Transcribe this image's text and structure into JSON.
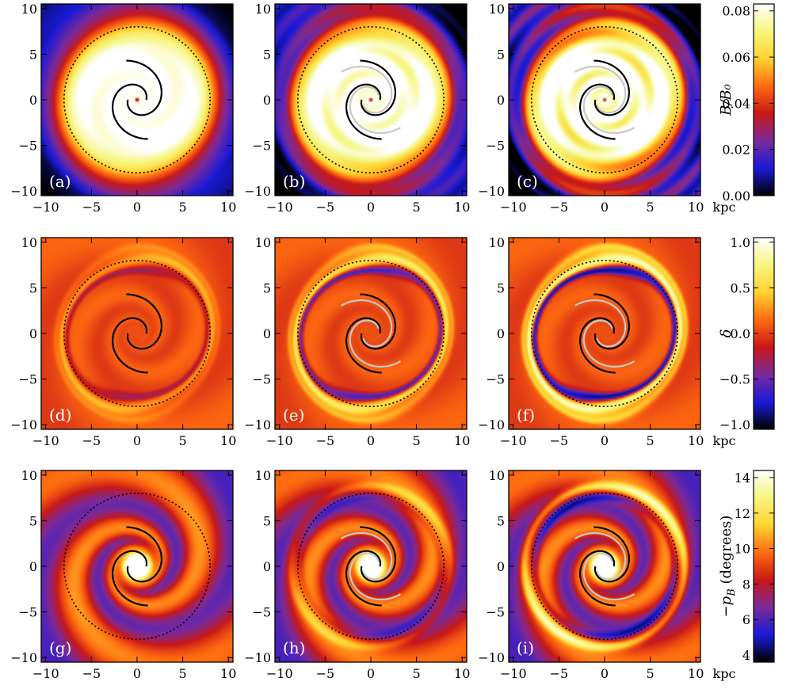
{
  "chart_data": {
    "type": "heatmap",
    "layout": "3x3 grid of face-on galactic disc maps with three colorbars",
    "x_unit": "kpc",
    "xlim": [
      -10.5,
      10.5
    ],
    "ylim": [
      -10.5,
      10.5
    ],
    "x_ticks": [
      -10,
      -5,
      0,
      5,
      10
    ],
    "y_ticks": [
      -10,
      -5,
      0,
      5,
      10
    ],
    "rows": [
      {
        "quantity": "B/B0",
        "colorbar_label": "B/B₀",
        "colorbar_range": [
          0.0,
          0.083
        ],
        "colorbar_ticks": [
          "0.00",
          "0.02",
          "0.04",
          "0.06",
          "0.08"
        ],
        "colorbar_tick_values": [
          0.0,
          0.02,
          0.04,
          0.06,
          0.08
        ],
        "panels": [
          "(a)",
          "(b)",
          "(c)"
        ]
      },
      {
        "quantity": "delta",
        "colorbar_label": "δ",
        "colorbar_range": [
          -1.05,
          1.05
        ],
        "colorbar_ticks": [
          "−1.0",
          "−0.5",
          "0.0",
          "0.5",
          "1.0"
        ],
        "colorbar_tick_values": [
          -1.0,
          -0.5,
          0.0,
          0.5,
          1.0
        ],
        "panels": [
          "(d)",
          "(e)",
          "(f)"
        ]
      },
      {
        "quantity": "-p_B",
        "colorbar_label": "−p",
        "colorbar_label_sub": "B",
        "colorbar_label_unit": " (degrees)",
        "colorbar_range": [
          3.6,
          14.4
        ],
        "colorbar_ticks": [
          "4",
          "6",
          "8",
          "10",
          "12",
          "14"
        ],
        "colorbar_tick_values": [
          4,
          6,
          8,
          10,
          12,
          14
        ],
        "panels": [
          "(g)",
          "(h)",
          "(i)"
        ]
      }
    ],
    "overlays": {
      "black_spiral_arms": 2,
      "grey_spiral_arms_in_columns": [
        2,
        3
      ],
      "dotted_circle_radius_kpc": 8
    }
  },
  "colors": {
    "colormap": [
      "#000000",
      "#1a1ad8",
      "#7a2a9a",
      "#c81818",
      "#ff6a10",
      "#ffd230",
      "#f6f67e",
      "#ffffff"
    ],
    "spiral_black": "#000000",
    "spiral_grey": "#c8c8c8"
  },
  "fields": {
    "B/B0": {
      "radial_profile": [
        [
          0,
          0.0
        ],
        [
          0.3,
          0.08
        ],
        [
          0.9,
          0.083
        ],
        [
          6,
          0.083
        ],
        [
          7.4,
          0.07
        ],
        [
          8.4,
          0.05
        ],
        [
          9.4,
          0.032
        ],
        [
          10.6,
          0.02
        ],
        [
          12,
          0.008
        ],
        [
          14,
          0.004
        ]
      ],
      "arm_modulation": [
        0.004,
        0.008,
        0.012
      ]
    },
    "delta": {
      "base_level": 0.05,
      "ring_radius_kpc": 8.2,
      "ring_amplitude": [
        0.35,
        0.7,
        1.0
      ]
    },
    "-p_B": {
      "radial_profile": [
        [
          0,
          14.4
        ],
        [
          1.2,
          14.4
        ],
        [
          1.8,
          10.5
        ],
        [
          2.8,
          8.5
        ],
        [
          5,
          8.2
        ],
        [
          8,
          8.5
        ],
        [
          11,
          8.0
        ],
        [
          14,
          7.8
        ]
      ],
      "arm_amplitude": 2.0,
      "ring_amplitude": [
        0.0,
        1.5,
        3.5
      ]
    }
  }
}
